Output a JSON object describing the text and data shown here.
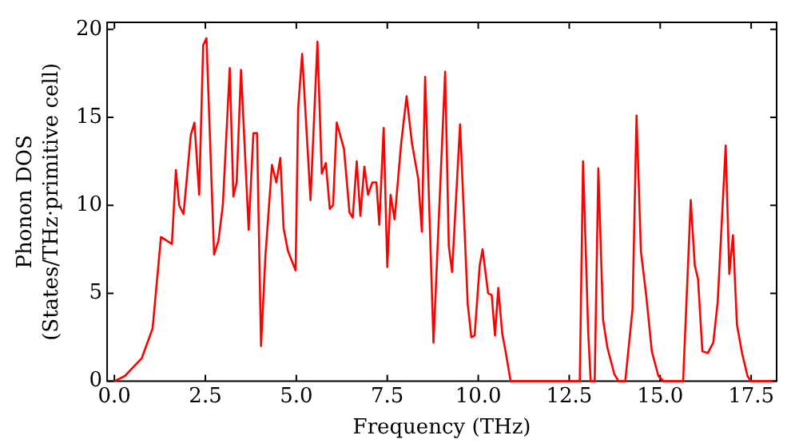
{
  "chart_data": {
    "type": "line",
    "xlabel": "Frequency (THz)",
    "ylabel": "Phonon DOS\n(States/THz·primitive cell)",
    "xlim": [
      -0.2,
      18.2
    ],
    "ylim": [
      0,
      20.4
    ],
    "xticks": [
      {
        "value": 0,
        "label": "0.0"
      },
      {
        "value": 2.5,
        "label": "2.5"
      },
      {
        "value": 5,
        "label": "5.0"
      },
      {
        "value": 7.5,
        "label": "7.5"
      },
      {
        "value": 10,
        "label": "10.0"
      },
      {
        "value": 12.5,
        "label": "12.5"
      },
      {
        "value": 15,
        "label": "15.0"
      },
      {
        "value": 17.5,
        "label": "17.5"
      }
    ],
    "yticks": [
      0,
      5,
      10,
      15,
      20
    ],
    "grid": false,
    "legend": false,
    "marker": "none",
    "line_style": "solid",
    "series": [
      {
        "color": "#ff0000",
        "x": [
          0,
          0.29,
          0.75,
          1.05,
          1.28,
          1.58,
          1.69,
          1.78,
          1.9,
          2.1,
          2.2,
          2.33,
          2.44,
          2.53,
          2.74,
          2.86,
          2.98,
          3.17,
          3.27,
          3.36,
          3.48,
          3.69,
          3.82,
          3.92,
          4.03,
          4.15,
          4.33,
          4.45,
          4.56,
          4.65,
          4.77,
          4.98,
          5.05,
          5.16,
          5.39,
          5.58,
          5.7,
          5.81,
          5.92,
          6.01,
          6.11,
          6.31,
          6.46,
          6.55,
          6.66,
          6.76,
          6.87,
          6.97,
          7.09,
          7.2,
          7.28,
          7.4,
          7.5,
          7.59,
          7.7,
          7.88,
          8.03,
          8.18,
          8.35,
          8.45,
          8.54,
          8.77,
          9.09,
          9.19,
          9.28,
          9.5,
          9.71,
          9.81,
          9.9,
          10.04,
          10.12,
          10.27,
          10.37,
          10.46,
          10.55,
          10.66,
          10.75,
          10.89,
          12.79,
          12.88,
          13.02,
          13.09,
          13.2,
          13.3,
          13.43,
          13.55,
          13.74,
          13.86,
          14.04,
          14.24,
          14.35,
          14.47,
          14.62,
          14.77,
          14.95,
          15.1,
          15.63,
          15.84,
          15.95,
          16.04,
          16.16,
          16.31,
          16.46,
          16.58,
          16.8,
          16.9,
          17.0,
          17.11,
          17.25,
          17.4,
          17.49,
          18.1
        ],
        "values": [
          0,
          0.3,
          1.3,
          3.0,
          8.2,
          7.8,
          12.0,
          10.0,
          9.5,
          14.0,
          14.7,
          10.6,
          19.1,
          19.5,
          7.2,
          8.0,
          10.0,
          17.8,
          10.5,
          11.3,
          17.7,
          8.6,
          14.1,
          14.1,
          2.0,
          7.1,
          12.3,
          11.3,
          12.7,
          8.7,
          7.4,
          6.3,
          15.5,
          18.6,
          10.3,
          19.3,
          11.8,
          12.4,
          9.8,
          10.0,
          14.7,
          13.2,
          9.6,
          9.3,
          12.5,
          9.4,
          12.2,
          10.6,
          11.3,
          11.3,
          8.9,
          14.4,
          6.5,
          10.6,
          9.2,
          13.5,
          16.2,
          13.5,
          11.5,
          8.5,
          17.3,
          2.2,
          17.6,
          7.7,
          6.2,
          14.6,
          4.4,
          2.5,
          2.6,
          6.6,
          7.5,
          5.0,
          4.9,
          2.6,
          5.3,
          2.7,
          1.7,
          0,
          0,
          12.5,
          2.9,
          0,
          0,
          12.1,
          3.5,
          1.9,
          0.4,
          0,
          0,
          4.1,
          15.1,
          7.4,
          4.8,
          1.7,
          0.3,
          0,
          0,
          10.3,
          6.6,
          5.8,
          1.7,
          1.6,
          2.2,
          4.5,
          13.4,
          6.1,
          8.3,
          3.2,
          1.6,
          0.3,
          0,
          0
        ]
      }
    ]
  }
}
